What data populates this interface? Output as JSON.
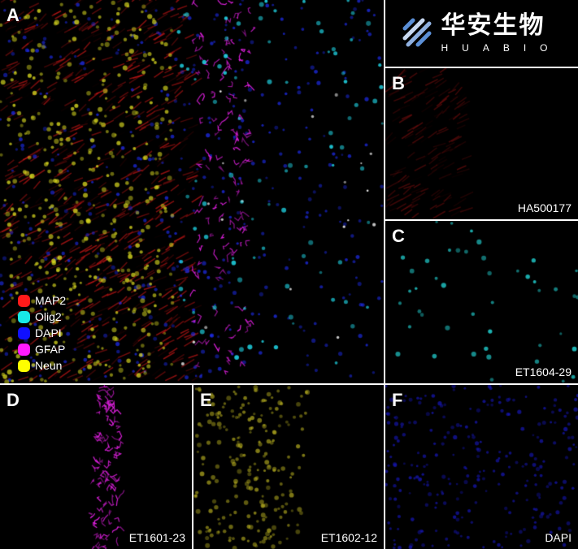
{
  "panels": {
    "A": {
      "letter": "A",
      "legend": [
        {
          "label": "MAP2",
          "color": "#ff1a1a"
        },
        {
          "label": "Olig2",
          "color": "#18e8e8"
        },
        {
          "label": "DAPI",
          "color": "#1010ff"
        },
        {
          "label": "GFAP",
          "color": "#ff1aff"
        },
        {
          "label": "Neun",
          "color": "#ffff00"
        }
      ]
    },
    "B": {
      "letter": "B",
      "antibody": "HA500177"
    },
    "C": {
      "letter": "C",
      "antibody": "ET1604-29"
    },
    "D": {
      "letter": "D",
      "antibody": "ET1601-23"
    },
    "E": {
      "letter": "E",
      "antibody": "ET1602-12"
    },
    "F": {
      "letter": "F",
      "antibody": "DAPI"
    }
  },
  "logo": {
    "chinese": "华安生物",
    "english": "HUABIO"
  }
}
